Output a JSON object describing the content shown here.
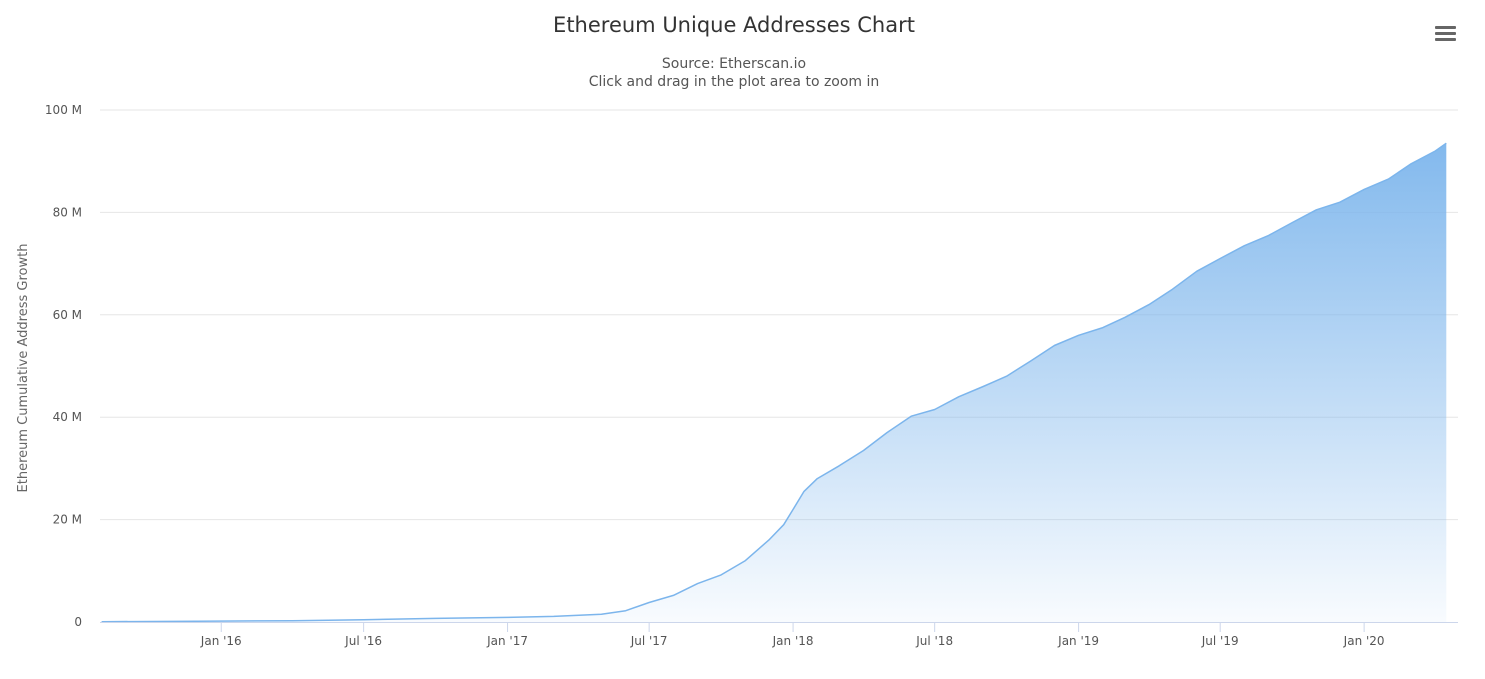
{
  "header": {
    "title": "Ethereum Unique Addresses Chart",
    "subtitle_source": "Source: Etherscan.io",
    "subtitle_hint": "Click and drag in the plot area to zoom in"
  },
  "menu": {
    "icon": "hamburger-menu-icon"
  },
  "colors": {
    "series": "#7cb5ec",
    "grid": "#e6e6e6",
    "axis": "#ccd6eb"
  },
  "chart_data": {
    "type": "area",
    "title": "Ethereum Unique Addresses Chart",
    "subtitle": "Source: Etherscan.io",
    "ylabel": "Ethereum Cumulative Address Growth",
    "xlabel": "",
    "ylim": [
      0,
      100
    ],
    "y_unit": "M",
    "y_ticks": [
      "0",
      "20 M",
      "40 M",
      "60 M",
      "80 M",
      "100 M"
    ],
    "xlim": [
      "2015-07-30",
      "2020-04-30"
    ],
    "x_ticks": [
      {
        "date": "2016-01-01",
        "label": "Jan '16"
      },
      {
        "date": "2016-07-01",
        "label": "Jul '16"
      },
      {
        "date": "2017-01-01",
        "label": "Jan '17"
      },
      {
        "date": "2017-07-01",
        "label": "Jul '17"
      },
      {
        "date": "2018-01-01",
        "label": "Jan '18"
      },
      {
        "date": "2018-07-01",
        "label": "Jul '18"
      },
      {
        "date": "2019-01-01",
        "label": "Jan '19"
      },
      {
        "date": "2019-07-01",
        "label": "Jul '19"
      },
      {
        "date": "2020-01-01",
        "label": "Jan '20"
      }
    ],
    "grid": true,
    "legend": "none",
    "series": [
      {
        "x": [
          "2015-08-01",
          "2015-12-01",
          "2016-04-01",
          "2016-07-01",
          "2016-10-01",
          "2017-01-01",
          "2017-03-01",
          "2017-05-01",
          "2017-06-01",
          "2017-07-01",
          "2017-08-01",
          "2017-09-01",
          "2017-10-01",
          "2017-11-01",
          "2017-12-01",
          "2017-12-20",
          "2018-01-01",
          "2018-01-15",
          "2018-02-01",
          "2018-03-01",
          "2018-04-01",
          "2018-05-01",
          "2018-06-01",
          "2018-07-01",
          "2018-08-01",
          "2018-09-01",
          "2018-10-01",
          "2018-11-01",
          "2018-12-01",
          "2019-01-01",
          "2019-02-01",
          "2019-03-01",
          "2019-04-01",
          "2019-05-01",
          "2019-06-01",
          "2019-07-01",
          "2019-08-01",
          "2019-09-01",
          "2019-10-01",
          "2019-11-01",
          "2019-12-01",
          "2020-01-01",
          "2020-02-01",
          "2020-03-01",
          "2020-04-01",
          "2020-04-15"
        ],
        "values": [
          0.05,
          0.15,
          0.25,
          0.45,
          0.7,
          0.9,
          1.1,
          1.5,
          2.2,
          3.8,
          5.2,
          7.5,
          9.2,
          12,
          16,
          19,
          22,
          25.5,
          28,
          30.5,
          33.5,
          37,
          40.2,
          41.5,
          44,
          46,
          48,
          51,
          54,
          56,
          57.5,
          59.5,
          62,
          65,
          68.5,
          71,
          73.5,
          75.5,
          78,
          80.5,
          82,
          84.5,
          86.5,
          89.5,
          92,
          93.5
        ]
      }
    ]
  }
}
